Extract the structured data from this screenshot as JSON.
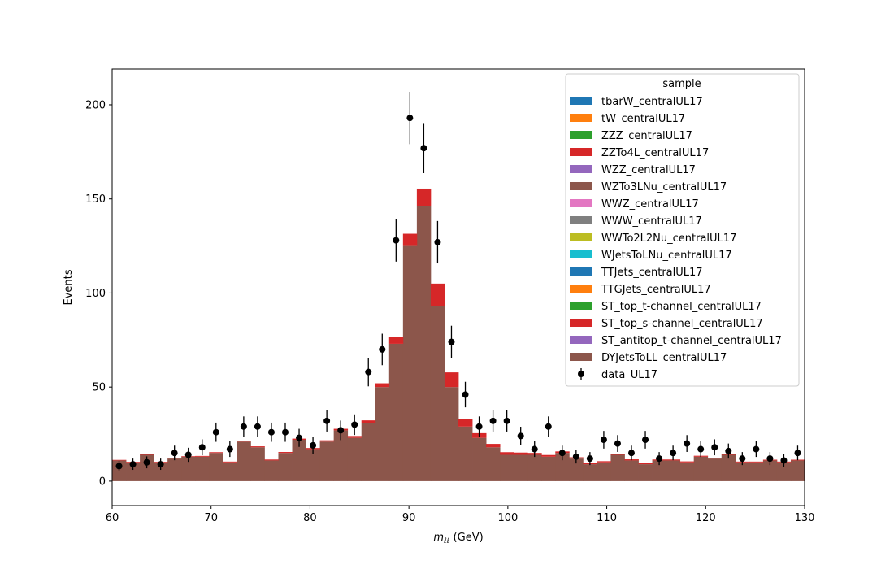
{
  "chart_data": {
    "type": "bar",
    "subtype": "stacked-histogram-with-data-points",
    "xlabel_main": "m",
    "xlabel_sub": "ℓℓ",
    "xlabel_unit": " (GeV)",
    "ylabel": "Events",
    "xlim": [
      60,
      130
    ],
    "ylim": [
      -13,
      219
    ],
    "xticks": [
      60,
      70,
      80,
      90,
      100,
      110,
      120,
      130
    ],
    "yticks": [
      0,
      50,
      100,
      150,
      200
    ],
    "grid": false,
    "legend_position": "top-right",
    "legend_title": "sample",
    "bin_edges": [
      60.0,
      61.4,
      62.8,
      64.2,
      65.6,
      67.0,
      68.4,
      69.8,
      71.2,
      72.6,
      74.0,
      75.4,
      76.8,
      78.2,
      79.6,
      81.0,
      82.4,
      83.8,
      85.2,
      86.6,
      88.0,
      89.4,
      90.8,
      92.2,
      93.6,
      95.0,
      96.4,
      97.8,
      99.2,
      100.6,
      102.0,
      103.4,
      104.8,
      106.2,
      107.6,
      109.0,
      110.4,
      111.8,
      113.2,
      114.6,
      116.0,
      117.4,
      118.8,
      120.2,
      121.6,
      123.0,
      124.4,
      125.8,
      127.2,
      128.6,
      130.0
    ],
    "series": [
      {
        "name": "tbarW_centralUL17",
        "color": "#1f77b4"
      },
      {
        "name": "tW_centralUL17",
        "color": "#ff7f0e"
      },
      {
        "name": "ZZZ_centralUL17",
        "color": "#2ca02c"
      },
      {
        "name": "ZZTo4L_centralUL17",
        "color": "#d62728",
        "values": [
          0.3,
          0.3,
          0.3,
          0.3,
          0.3,
          0.3,
          0.4,
          0.4,
          0.4,
          0.5,
          0.5,
          0.5,
          0.5,
          0.6,
          0.6,
          0.7,
          0.8,
          1.0,
          1.3,
          2.0,
          3.5,
          6.5,
          9.5,
          12.0,
          7.8,
          4.0,
          2.5,
          1.8,
          1.4,
          1.2,
          1.0,
          0.9,
          0.8,
          0.7,
          0.7,
          0.6,
          0.6,
          0.6,
          0.5,
          0.5,
          0.5,
          0.5,
          0.5,
          0.4,
          0.4,
          0.4,
          0.4,
          0.4,
          0.4,
          0.4
        ]
      },
      {
        "name": "WZZ_centralUL17",
        "color": "#9467bd"
      },
      {
        "name": "WZTo3LNu_centralUL17",
        "color": "#8c564b"
      },
      {
        "name": "WWZ_centralUL17",
        "color": "#e377c2"
      },
      {
        "name": "WWW_centralUL17",
        "color": "#7f7f7f"
      },
      {
        "name": "WWTo2L2Nu_centralUL17",
        "color": "#bcbd22"
      },
      {
        "name": "WJetsToLNu_centralUL17",
        "color": "#17becf"
      },
      {
        "name": "TTJets_centralUL17",
        "color": "#1f77b4"
      },
      {
        "name": "TTGJets_centralUL17",
        "color": "#ff7f0e"
      },
      {
        "name": "ST_top_t-channel_centralUL17",
        "color": "#2ca02c"
      },
      {
        "name": "ST_top_s-channel_centralUL17",
        "color": "#d62728"
      },
      {
        "name": "ST_antitop_t-channel_centralUL17",
        "color": "#9467bd"
      },
      {
        "name": "DYJetsToLL_centralUL17",
        "color": "#8c564b",
        "values": [
          11,
          10,
          14,
          10,
          12,
          13,
          13,
          15,
          10,
          21,
          18,
          11,
          15,
          22,
          17,
          21,
          27,
          23,
          31,
          50,
          73,
          125,
          146,
          93,
          50,
          29,
          23,
          18,
          14,
          14,
          14,
          13,
          15,
          12,
          9,
          10,
          14,
          11,
          9,
          11,
          11,
          10,
          13,
          12,
          14,
          10,
          10,
          11,
          10,
          11
        ]
      }
    ],
    "data_points": {
      "name": "data_UL17",
      "x": [
        60.7,
        62.1,
        63.5,
        64.9,
        66.3,
        67.7,
        69.1,
        70.5,
        71.9,
        73.3,
        74.7,
        76.1,
        77.5,
        78.9,
        80.3,
        81.7,
        83.1,
        84.5,
        85.9,
        87.3,
        88.7,
        90.1,
        91.5,
        92.9,
        94.3,
        95.7,
        97.1,
        98.5,
        99.9,
        101.3,
        102.7,
        104.1,
        105.5,
        106.9,
        108.3,
        109.7,
        111.1,
        112.5,
        113.9,
        115.3,
        116.7,
        118.1,
        119.5,
        120.9,
        122.3,
        123.7,
        125.1,
        126.5,
        127.9,
        129.3
      ],
      "y": [
        8,
        9,
        10,
        9,
        15,
        14,
        18,
        26,
        17,
        29,
        29,
        26,
        26,
        23,
        19,
        32,
        27,
        30,
        58,
        70,
        128,
        193,
        177,
        127,
        74,
        46,
        29,
        32,
        32,
        24,
        17,
        29,
        15,
        13,
        12,
        22,
        20,
        15,
        22,
        12,
        15,
        20,
        17,
        18,
        16,
        12,
        17,
        12,
        11,
        15
      ]
    }
  }
}
